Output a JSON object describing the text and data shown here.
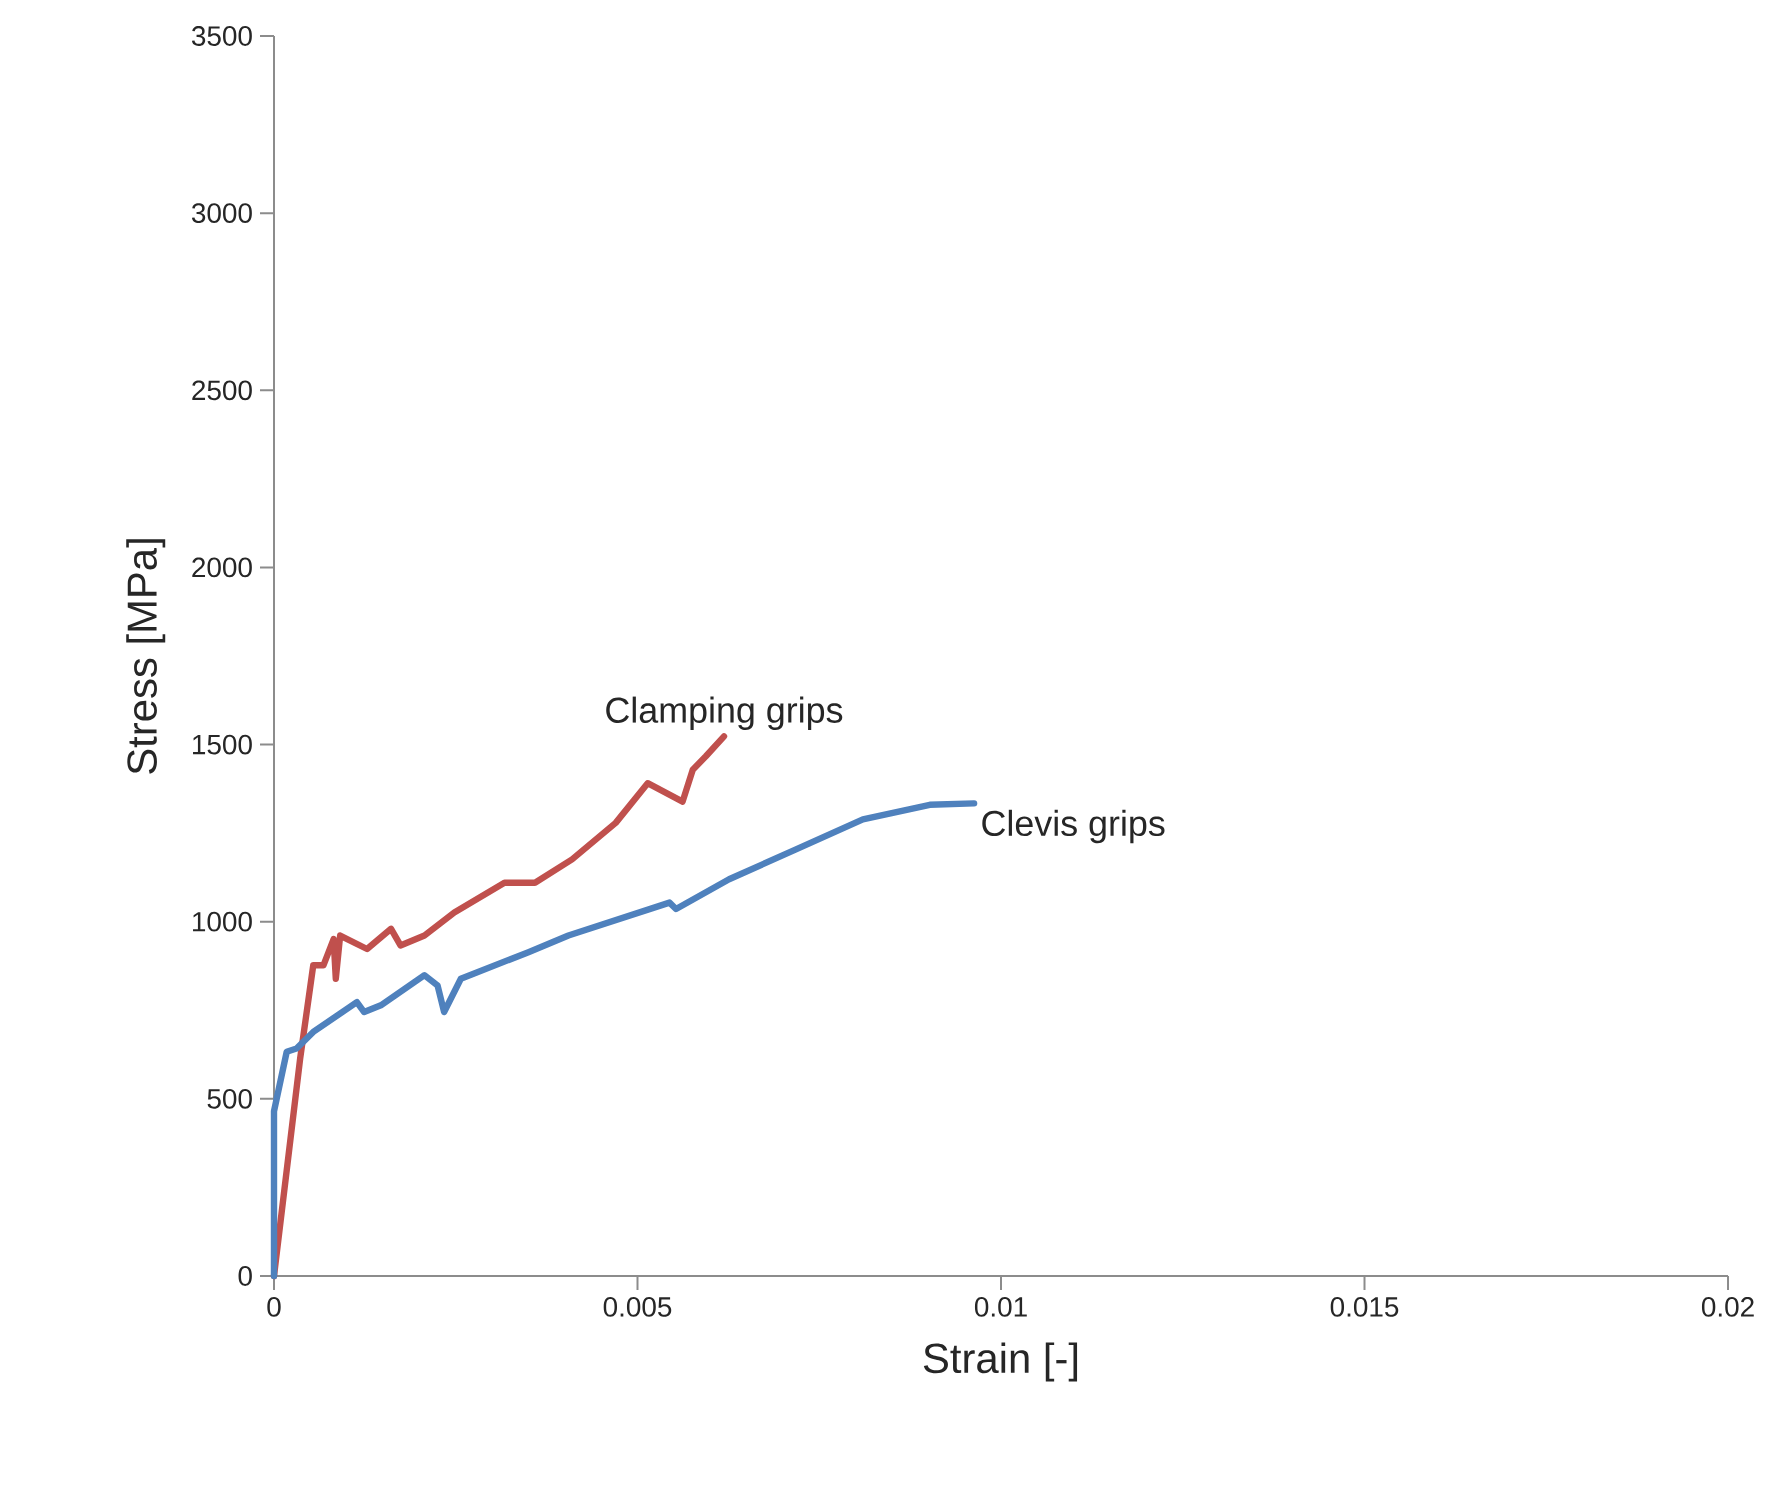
{
  "chart_data": {
    "type": "line",
    "xlabel": "Strain [-]",
    "ylabel": "Stress [MPa]",
    "xlim": [
      0,
      0.02
    ],
    "ylim": [
      0,
      3500
    ],
    "xticks": [
      0,
      0.005,
      0.01,
      0.015,
      0.02
    ],
    "yticks": [
      0,
      500,
      1000,
      1500,
      2000,
      2500,
      3000,
      3500
    ],
    "grid": false,
    "legend": false,
    "marker": "none",
    "line_style": "solid",
    "series": [
      {
        "name": "Clamping grips",
        "color": "#c0504d",
        "x": [
          0,
          0.00036,
          0.00054,
          0.00068,
          0.00082,
          0.00085,
          0.00091,
          0.00128,
          0.00161,
          0.00174,
          0.00207,
          0.00248,
          0.00317,
          0.00359,
          0.0041,
          0.0047,
          0.00514,
          0.00562,
          0.00576,
          0.00594,
          0.00619
        ],
        "values": [
          0,
          614,
          877,
          877,
          951,
          839,
          961,
          923,
          980,
          933,
          961,
          1026,
          1110,
          1110,
          1176,
          1279,
          1391,
          1339,
          1429,
          1467,
          1523
        ]
      },
      {
        "name": "Clevis grips",
        "color": "#4f81bd",
        "x": [
          0,
          0,
          0.000175,
          0.00031,
          0.00054,
          0.00114,
          0.00124,
          0.00147,
          0.00207,
          0.00225,
          0.00234,
          0.00257,
          0.0035,
          0.00405,
          0.00544,
          0.00553,
          0.00626,
          0.00718,
          0.0081,
          0.00902,
          0.00963
        ],
        "values": [
          0,
          465,
          633,
          642,
          689,
          773,
          745,
          764,
          849,
          820,
          745,
          839,
          914,
          961,
          1054,
          1036,
          1120,
          1204,
          1289,
          1330,
          1334
        ]
      }
    ]
  }
}
